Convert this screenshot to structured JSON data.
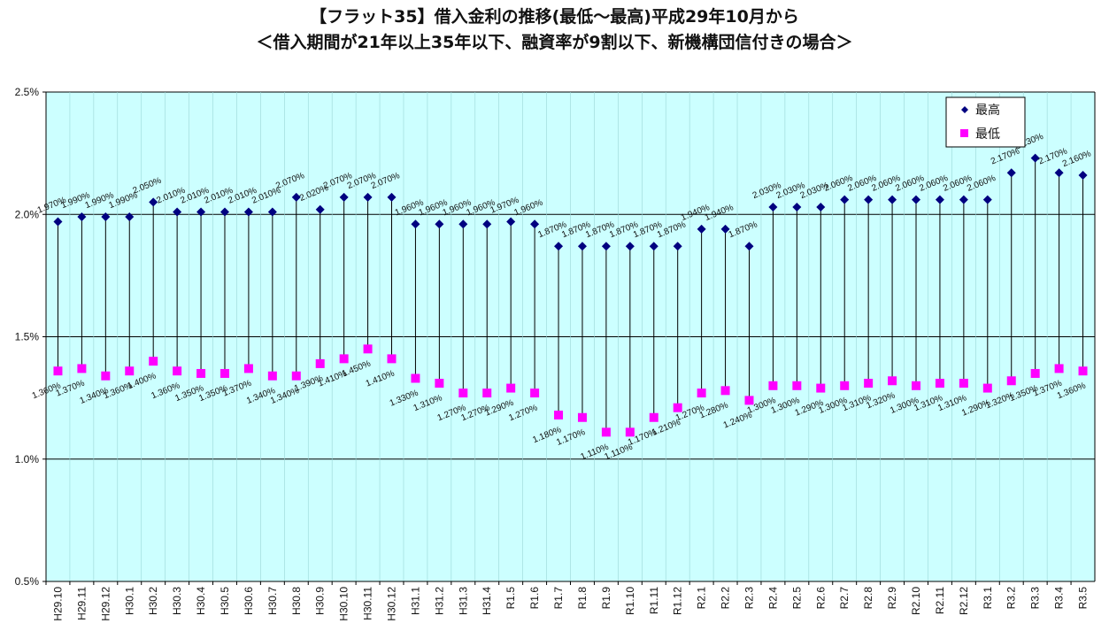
{
  "title_line1": "【フラット35】借入金利の推移(最低～最高)平成29年10月から",
  "title_line2": "＜借入期間が21年以上35年以下、融資率が9割以下、新機構団信付きの場合＞",
  "colors": {
    "plot_bg": "#ccffff",
    "grid": "#000000",
    "high": "#000080",
    "low": "#ff00ff"
  },
  "chart_data": {
    "type": "scatter",
    "ylim": [
      0.5,
      2.5
    ],
    "y_ticks": [
      "0.5%",
      "1.0%",
      "1.5%",
      "2.0%",
      "2.5%"
    ],
    "grid": true,
    "legend_position": "top-right",
    "categories": [
      "H29.10",
      "H29.11",
      "H29.12",
      "H30.1",
      "H30.2",
      "H30.3",
      "H30.4",
      "H30.5",
      "H30.6",
      "H30.7",
      "H30.8",
      "H30.9",
      "H30.10",
      "H30.11",
      "H30.12",
      "H31.1",
      "H31.2",
      "H31.3",
      "H31.4",
      "R1.5",
      "R1.6",
      "R1.7",
      "R1.8",
      "R1.9",
      "R1.10",
      "R1.11",
      "R1.12",
      "R2.1",
      "R2.2",
      "R2.3",
      "R2.4",
      "R2.5",
      "R2.6",
      "R2.7",
      "R2.8",
      "R2.9",
      "R2.10",
      "R2.11",
      "R2.12",
      "R3.1",
      "R3.2",
      "R3.3",
      "R3.4",
      "R3.5"
    ],
    "series": [
      {
        "name": "最高",
        "marker": "diamond",
        "values": [
          1.97,
          1.99,
          1.99,
          1.99,
          2.05,
          2.01,
          2.01,
          2.01,
          2.01,
          2.01,
          2.07,
          2.02,
          2.07,
          2.07,
          2.07,
          1.96,
          1.96,
          1.96,
          1.96,
          1.97,
          1.96,
          1.87,
          1.87,
          1.87,
          1.87,
          1.87,
          1.87,
          1.94,
          1.94,
          1.87,
          2.03,
          2.03,
          2.03,
          2.06,
          2.06,
          2.06,
          2.06,
          2.06,
          2.06,
          2.06,
          2.17,
          2.23,
          2.17,
          2.16
        ],
        "labels": [
          "1.970%",
          "1.990%",
          "1.990%",
          "1.990%",
          "2.050%",
          "2.010%",
          "2.010%",
          "2.010%",
          "2.010%",
          "2.010%",
          "2.070%",
          "2.020%",
          "2.070%",
          "2.070%",
          "2.070%",
          "1.960%",
          "1.960%",
          "1.960%",
          "1.960%",
          "1.970%",
          "1.960%",
          "1.870%",
          "1.870%",
          "1.870%",
          "1.870%",
          "1.870%",
          "1.870%",
          "1.940%",
          "1.940%",
          "1.870%",
          "2.030%",
          "2.030%",
          "2.030%",
          "2.060%",
          "2.060%",
          "2.060%",
          "2.060%",
          "2.060%",
          "2.060%",
          "2.060%",
          "2.170%",
          "2.230%",
          "2.170%",
          "2.160%"
        ]
      },
      {
        "name": "最低",
        "marker": "square",
        "values": [
          1.36,
          1.37,
          1.34,
          1.36,
          1.4,
          1.36,
          1.35,
          1.35,
          1.37,
          1.34,
          1.34,
          1.39,
          1.41,
          1.45,
          1.41,
          1.33,
          1.31,
          1.27,
          1.27,
          1.29,
          1.27,
          1.18,
          1.17,
          1.11,
          1.11,
          1.17,
          1.21,
          1.27,
          1.28,
          1.24,
          1.3,
          1.3,
          1.29,
          1.3,
          1.31,
          1.32,
          1.3,
          1.31,
          1.31,
          1.29,
          1.32,
          1.35,
          1.37,
          1.36
        ],
        "labels": [
          "1.360%",
          "1.370%",
          "1.340%",
          "1.360%",
          "1.400%",
          "1.360%",
          "1.350%",
          "1.350%",
          "1.370%",
          "1.340%",
          "1.340%",
          "1.390%",
          "1.410%",
          "1.450%",
          "1.410%",
          "1.330%",
          "1.310%",
          "1.270%",
          "1.270%",
          "1.290%",
          "1.270%",
          "1.180%",
          "1.170%",
          "1.110%",
          "1.110%",
          "1.170%",
          "1.210%",
          "1.270%",
          "1.280%",
          "1.240%",
          "1.300%",
          "1.300%",
          "1.290%",
          "1.300%",
          "1.310%",
          "1.320%",
          "1.300%",
          "1.310%",
          "1.310%",
          "1.290%",
          "1.320%",
          "1.350%",
          "1.370%",
          "1.360%"
        ]
      }
    ]
  }
}
